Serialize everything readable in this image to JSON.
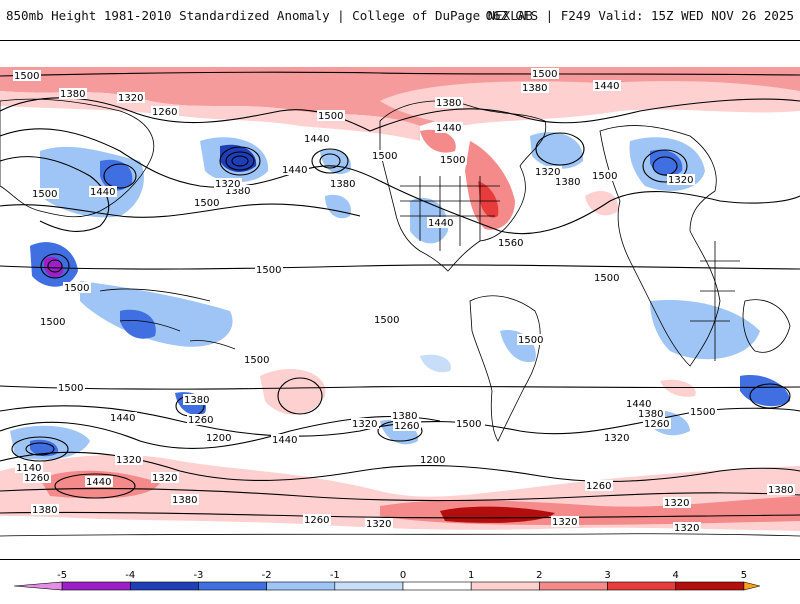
{
  "header": {
    "title": "850mb Height 1981-2010 Standardized Anomaly | College of DuPage NEXLAB",
    "run_info": "06Z GFS | F249 Valid: 15Z WED NOV 26 2025"
  },
  "legend": {
    "tick_labels": [
      "-5",
      "-4",
      "-3",
      "-2",
      "-1",
      "0",
      "1",
      "2",
      "3",
      "4",
      "5"
    ],
    "colors": [
      "#e58de5",
      "#9c1fc7",
      "#1f3fb8",
      "#3f6fe0",
      "#9ec5f5",
      "#c8ddf7",
      "#ffffff",
      "#ffd0d0",
      "#f48a8a",
      "#e83c3c",
      "#b30d0d",
      "#ff9f1a"
    ]
  },
  "contour_labels": [
    "1500",
    "1380",
    "1320",
    "1260",
    "1440",
    "1500",
    "1380",
    "1380",
    "1440",
    "1320",
    "1440",
    "1500",
    "1320",
    "1440",
    "1500",
    "1380",
    "1320",
    "1500",
    "1380",
    "1440",
    "1440",
    "1500",
    "1560",
    "1500",
    "1500",
    "1500",
    "1500",
    "1500",
    "1500",
    "1500",
    "1500",
    "1380",
    "1260",
    "1200",
    "1440",
    "1320",
    "1260",
    "1380",
    "1200",
    "1500",
    "1500",
    "1440",
    "1320",
    "1380",
    "1260",
    "1500",
    "1440",
    "1140",
    "1260",
    "1320",
    "1440",
    "1320",
    "1380",
    "1260",
    "1380",
    "1320",
    "1260",
    "1320",
    "1320",
    "1380",
    "1320",
    "1500",
    "1380",
    "1500"
  ],
  "anomaly_colors": {
    "neg_light": "#c8ddf7",
    "neg_mid": "#9ec5f5",
    "neg_strong": "#3f6fe0",
    "neg_deep": "#1f3fb8",
    "neg_extreme": "#9c1fc7",
    "pos_light": "#ffd0d0",
    "pos_mid": "#f48a8a",
    "pos_strong": "#e83c3c",
    "pos_deep": "#b30d0d"
  }
}
